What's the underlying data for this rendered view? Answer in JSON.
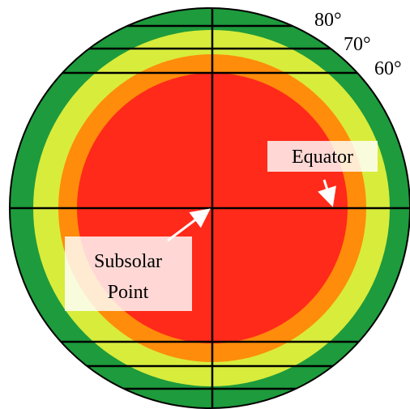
{
  "latitude_labels": [
    "80°",
    "70°",
    "60°"
  ],
  "annotations": {
    "equator": "Equator",
    "subsolar_point": [
      "Subsolar",
      "Point"
    ]
  }
}
